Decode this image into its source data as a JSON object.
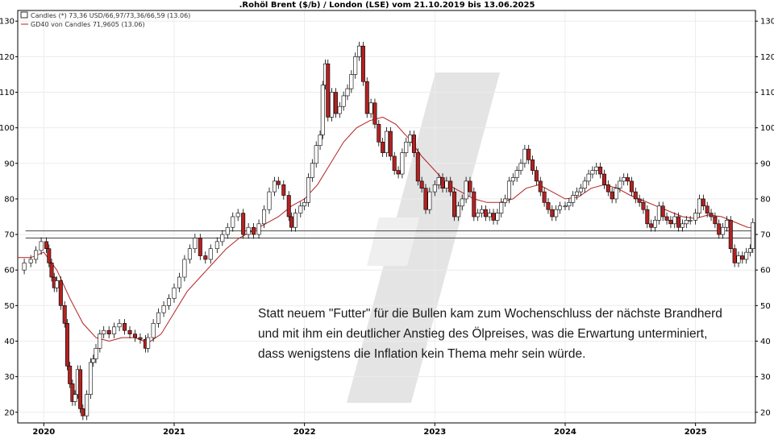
{
  "chart_data": {
    "type": "candlestick",
    "title": ".Rohöl Brent ($/b) / London (LSE) vom 21.10.2019 bis 13.06.2025",
    "legend": [
      {
        "label": "Candles (*) 73,36 USD/66,97/73,36/66,59 (13.06)",
        "color": "#000000"
      },
      {
        "label": "GD40 von Candles 71,9605 (13.06)",
        "color": "#b22222"
      }
    ],
    "y_ticks": [
      20,
      30,
      40,
      50,
      60,
      70,
      80,
      90,
      100,
      110,
      120,
      130
    ],
    "ylim": [
      17,
      133
    ],
    "x_ticks": [
      "2020",
      "2021",
      "2022",
      "2023",
      "2024",
      "2025"
    ],
    "xlim": [
      2019.8,
      2025.46
    ],
    "horizontal_lines": [
      71.0,
      69.0
    ],
    "up_color": "#ffffff",
    "down_color": "#b22222",
    "close_series": [
      [
        2019.81,
        60.0
      ],
      [
        2019.85,
        62.0
      ],
      [
        2019.9,
        63.0
      ],
      [
        2019.94,
        65.5
      ],
      [
        2019.98,
        68.0
      ],
      [
        2020.02,
        66.0
      ],
      [
        2020.04,
        62.0
      ],
      [
        2020.06,
        58.0
      ],
      [
        2020.08,
        55.0
      ],
      [
        2020.1,
        57.0
      ],
      [
        2020.13,
        50.0
      ],
      [
        2020.16,
        45.0
      ],
      [
        2020.18,
        33.0
      ],
      [
        2020.2,
        28.0
      ],
      [
        2020.22,
        23.0
      ],
      [
        2020.24,
        25.0
      ],
      [
        2020.26,
        32.0
      ],
      [
        2020.28,
        21.0
      ],
      [
        2020.3,
        19.0
      ],
      [
        2020.33,
        25.0
      ],
      [
        2020.36,
        34.0
      ],
      [
        2020.38,
        35.0
      ],
      [
        2020.4,
        38.0
      ],
      [
        2020.43,
        42.0
      ],
      [
        2020.46,
        43.0
      ],
      [
        2020.5,
        42.0
      ],
      [
        2020.54,
        44.0
      ],
      [
        2020.58,
        45.0
      ],
      [
        2020.62,
        43.0
      ],
      [
        2020.66,
        42.0
      ],
      [
        2020.7,
        41.0
      ],
      [
        2020.74,
        40.5
      ],
      [
        2020.78,
        38.0
      ],
      [
        2020.8,
        41.0
      ],
      [
        2020.84,
        45.0
      ],
      [
        2020.88,
        48.0
      ],
      [
        2020.92,
        50.0
      ],
      [
        2020.96,
        52.0
      ],
      [
        2021.0,
        55.0
      ],
      [
        2021.04,
        58.0
      ],
      [
        2021.08,
        63.0
      ],
      [
        2021.12,
        66.0
      ],
      [
        2021.16,
        69.0
      ],
      [
        2021.2,
        64.0
      ],
      [
        2021.24,
        63.0
      ],
      [
        2021.28,
        66.0
      ],
      [
        2021.33,
        68.0
      ],
      [
        2021.37,
        70.0
      ],
      [
        2021.41,
        72.0
      ],
      [
        2021.45,
        75.0
      ],
      [
        2021.49,
        76.0
      ],
      [
        2021.53,
        70.0
      ],
      [
        2021.57,
        72.0
      ],
      [
        2021.61,
        70.0
      ],
      [
        2021.65,
        73.0
      ],
      [
        2021.69,
        77.0
      ],
      [
        2021.73,
        82.0
      ],
      [
        2021.77,
        85.0
      ],
      [
        2021.8,
        84.0
      ],
      [
        2021.84,
        81.0
      ],
      [
        2021.88,
        75.0
      ],
      [
        2021.9,
        72.0
      ],
      [
        2021.93,
        76.0
      ],
      [
        2021.97,
        78.0
      ],
      [
        2022.0,
        79.0
      ],
      [
        2022.03,
        86.0
      ],
      [
        2022.06,
        90.0
      ],
      [
        2022.09,
        95.0
      ],
      [
        2022.12,
        98.0
      ],
      [
        2022.14,
        112.0
      ],
      [
        2022.16,
        118.0
      ],
      [
        2022.18,
        103.0
      ],
      [
        2022.21,
        110.0
      ],
      [
        2022.24,
        104.0
      ],
      [
        2022.27,
        106.0
      ],
      [
        2022.3,
        109.0
      ],
      [
        2022.33,
        111.0
      ],
      [
        2022.36,
        115.0
      ],
      [
        2022.39,
        120.0
      ],
      [
        2022.42,
        123.0
      ],
      [
        2022.45,
        113.0
      ],
      [
        2022.48,
        104.0
      ],
      [
        2022.51,
        107.0
      ],
      [
        2022.54,
        101.0
      ],
      [
        2022.57,
        96.0
      ],
      [
        2022.6,
        93.0
      ],
      [
        2022.63,
        99.0
      ],
      [
        2022.66,
        92.0
      ],
      [
        2022.69,
        88.0
      ],
      [
        2022.72,
        87.0
      ],
      [
        2022.75,
        93.0
      ],
      [
        2022.78,
        96.0
      ],
      [
        2022.81,
        98.0
      ],
      [
        2022.84,
        93.0
      ],
      [
        2022.87,
        85.0
      ],
      [
        2022.9,
        83.0
      ],
      [
        2022.93,
        77.0
      ],
      [
        2022.96,
        82.0
      ],
      [
        2023.0,
        84.0
      ],
      [
        2023.03,
        86.0
      ],
      [
        2023.06,
        83.0
      ],
      [
        2023.09,
        85.0
      ],
      [
        2023.12,
        82.0
      ],
      [
        2023.15,
        75.0
      ],
      [
        2023.18,
        78.0
      ],
      [
        2023.21,
        80.0
      ],
      [
        2023.24,
        85.0
      ],
      [
        2023.27,
        82.0
      ],
      [
        2023.3,
        75.0
      ],
      [
        2023.33,
        76.0
      ],
      [
        2023.36,
        77.0
      ],
      [
        2023.39,
        75.0
      ],
      [
        2023.42,
        76.0
      ],
      [
        2023.45,
        74.0
      ],
      [
        2023.48,
        76.0
      ],
      [
        2023.51,
        79.0
      ],
      [
        2023.54,
        80.0
      ],
      [
        2023.57,
        85.0
      ],
      [
        2023.6,
        86.0
      ],
      [
        2023.63,
        88.0
      ],
      [
        2023.66,
        90.0
      ],
      [
        2023.69,
        94.0
      ],
      [
        2023.72,
        91.0
      ],
      [
        2023.75,
        88.0
      ],
      [
        2023.78,
        85.0
      ],
      [
        2023.81,
        82.0
      ],
      [
        2023.84,
        79.0
      ],
      [
        2023.87,
        77.0
      ],
      [
        2023.9,
        75.0
      ],
      [
        2023.93,
        77.0
      ],
      [
        2023.96,
        78.0
      ],
      [
        2024.0,
        78.0
      ],
      [
        2024.03,
        79.0
      ],
      [
        2024.06,
        81.0
      ],
      [
        2024.09,
        82.0
      ],
      [
        2024.12,
        83.0
      ],
      [
        2024.15,
        85.0
      ],
      [
        2024.18,
        87.0
      ],
      [
        2024.21,
        88.0
      ],
      [
        2024.24,
        89.0
      ],
      [
        2024.27,
        87.0
      ],
      [
        2024.3,
        84.0
      ],
      [
        2024.33,
        82.0
      ],
      [
        2024.36,
        80.0
      ],
      [
        2024.39,
        83.0
      ],
      [
        2024.42,
        85.0
      ],
      [
        2024.45,
        86.0
      ],
      [
        2024.48,
        85.0
      ],
      [
        2024.51,
        82.0
      ],
      [
        2024.54,
        80.0
      ],
      [
        2024.57,
        79.0
      ],
      [
        2024.6,
        77.0
      ],
      [
        2024.63,
        73.0
      ],
      [
        2024.66,
        72.0
      ],
      [
        2024.69,
        74.0
      ],
      [
        2024.72,
        78.0
      ],
      [
        2024.75,
        75.0
      ],
      [
        2024.78,
        74.0
      ],
      [
        2024.81,
        73.0
      ],
      [
        2024.84,
        75.0
      ],
      [
        2024.87,
        72.0
      ],
      [
        2024.9,
        73.0
      ],
      [
        2024.93,
        74.0
      ],
      [
        2024.96,
        74.0
      ],
      [
        2025.0,
        76.0
      ],
      [
        2025.03,
        80.0
      ],
      [
        2025.06,
        78.0
      ],
      [
        2025.09,
        76.0
      ],
      [
        2025.12,
        75.0
      ],
      [
        2025.15,
        73.0
      ],
      [
        2025.18,
        70.0
      ],
      [
        2025.21,
        72.0
      ],
      [
        2025.24,
        74.0
      ],
      [
        2025.27,
        66.0
      ],
      [
        2025.3,
        62.0
      ],
      [
        2025.33,
        64.0
      ],
      [
        2025.36,
        63.0
      ],
      [
        2025.39,
        65.0
      ],
      [
        2025.42,
        66.0
      ],
      [
        2025.44,
        73.36
      ]
    ],
    "gd40_series": [
      [
        2019.8,
        63.5
      ],
      [
        2019.9,
        63.5
      ],
      [
        2020.0,
        65.0
      ],
      [
        2020.1,
        60.0
      ],
      [
        2020.2,
        52.0
      ],
      [
        2020.3,
        45.0
      ],
      [
        2020.4,
        41.0
      ],
      [
        2020.5,
        40.0
      ],
      [
        2020.6,
        41.0
      ],
      [
        2020.7,
        41.0
      ],
      [
        2020.8,
        39.5
      ],
      [
        2020.9,
        42.0
      ],
      [
        2021.0,
        48.0
      ],
      [
        2021.1,
        54.0
      ],
      [
        2021.2,
        58.0
      ],
      [
        2021.3,
        62.0
      ],
      [
        2021.4,
        66.0
      ],
      [
        2021.5,
        69.0
      ],
      [
        2021.6,
        71.0
      ],
      [
        2021.7,
        73.0
      ],
      [
        2021.8,
        75.0
      ],
      [
        2021.9,
        78.0
      ],
      [
        2022.0,
        80.0
      ],
      [
        2022.1,
        84.0
      ],
      [
        2022.2,
        90.0
      ],
      [
        2022.3,
        96.0
      ],
      [
        2022.4,
        100.0
      ],
      [
        2022.5,
        102.0
      ],
      [
        2022.6,
        103.0
      ],
      [
        2022.7,
        101.0
      ],
      [
        2022.8,
        97.0
      ],
      [
        2022.9,
        92.0
      ],
      [
        2023.0,
        88.0
      ],
      [
        2023.1,
        84.0
      ],
      [
        2023.2,
        82.0
      ],
      [
        2023.3,
        80.0
      ],
      [
        2023.4,
        79.0
      ],
      [
        2023.5,
        79.0
      ],
      [
        2023.6,
        80.0
      ],
      [
        2023.7,
        83.0
      ],
      [
        2023.8,
        84.0
      ],
      [
        2023.9,
        82.0
      ],
      [
        2024.0,
        80.0
      ],
      [
        2024.1,
        80.5
      ],
      [
        2024.2,
        83.0
      ],
      [
        2024.3,
        84.0
      ],
      [
        2024.4,
        83.0
      ],
      [
        2024.5,
        81.0
      ],
      [
        2024.6,
        79.5
      ],
      [
        2024.7,
        78.0
      ],
      [
        2024.8,
        76.5
      ],
      [
        2024.9,
        75.0
      ],
      [
        2025.0,
        74.5
      ],
      [
        2025.1,
        75.5
      ],
      [
        2025.2,
        75.0
      ],
      [
        2025.3,
        73.5
      ],
      [
        2025.4,
        72.0
      ],
      [
        2025.44,
        71.96
      ]
    ],
    "annotation": [
      "Statt neuem \"Futter\" für die Bullen kam zum Wochenschluss der nächste Brandherd",
      "und mit ihm ein deutlicher Anstieg des Ölpreises, was die Erwartung unterminiert,",
      "dass wenigstens die Inflation kein Thema mehr sein würde."
    ]
  }
}
